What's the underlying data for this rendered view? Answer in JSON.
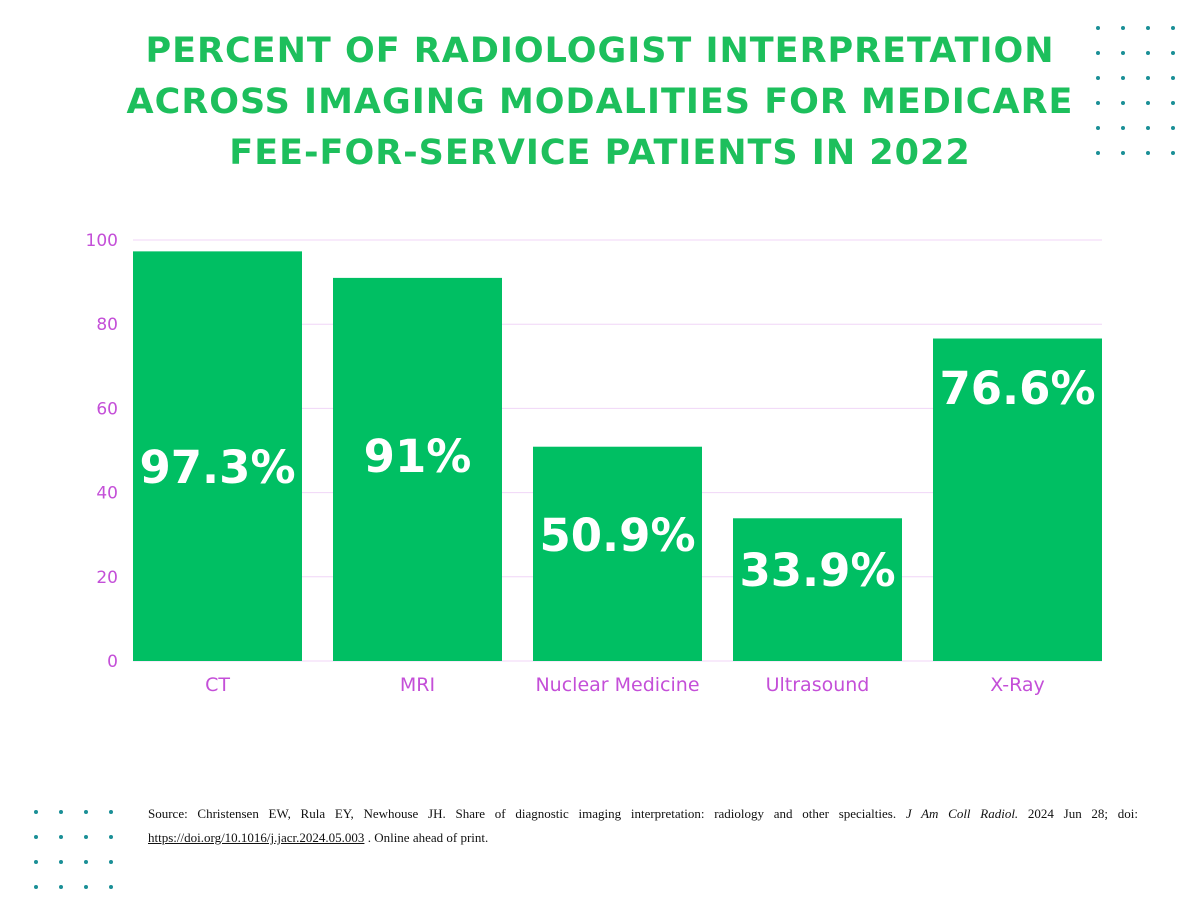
{
  "title_lines": [
    "PERCENT OF RADIOLOGIST INTERPRETATION",
    "ACROSS IMAGING MODALITIES FOR MEDICARE",
    "FEE-FOR-SERVICE PATIENTS IN 2022"
  ],
  "colors": {
    "bar": "#00bf63",
    "title": "#1dbf5c",
    "axis_text": "#c44fd8",
    "grid": "#f0d6f7",
    "dots": "#1a8f96"
  },
  "chart_data": {
    "type": "bar",
    "title": "Percent of Radiologist Interpretation Across Imaging Modalities for Medicare Fee-for-Service Patients in 2022",
    "categories": [
      "CT",
      "MRI",
      "Nuclear Medicine",
      "Ultrasound",
      "X-Ray"
    ],
    "values": [
      97.3,
      91,
      50.9,
      33.9,
      76.6
    ],
    "data_labels": [
      "97.3%",
      "91%",
      "50.9%",
      "33.9%",
      "76.6%"
    ],
    "y_ticks": [
      0,
      20,
      40,
      60,
      80,
      100
    ],
    "ylim": [
      0,
      100
    ],
    "xlabel": "",
    "ylabel": "",
    "grid": true
  },
  "source": {
    "text_before": "Source: Christensen EW, Rula EY, Newhouse JH. Share of diagnostic imaging interpretation: radiology and other specialties. ",
    "journal": "J Am Coll Radiol.",
    "text_mid": " 2024 Jun 28; doi: ",
    "link": "https://doi.org/10.1016/j.jacr.2024.05.003",
    "text_after": " . Online ahead of print."
  }
}
